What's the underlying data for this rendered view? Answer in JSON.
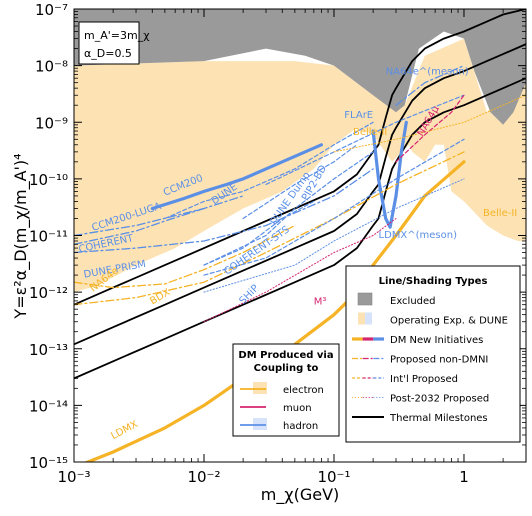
{
  "chart_data": {
    "type": "line",
    "xlabel": "m_χ(GeV)",
    "ylabel": "Y=ε²α_D(m_χ/m_A')⁴",
    "x_scale": "log",
    "y_scale": "log",
    "xlim": [
      0.001,
      3
    ],
    "ylim": [
      1e-15,
      1e-07
    ],
    "x_ticks": [
      {
        "value": 0.001,
        "label": "10⁻³"
      },
      {
        "value": 0.01,
        "label": "10⁻²"
      },
      {
        "value": 0.1,
        "label": "10⁻¹"
      },
      {
        "value": 1,
        "label": "1"
      }
    ],
    "y_ticks": [
      {
        "value": 1e-15,
        "label": "10⁻¹⁵"
      },
      {
        "value": 1e-14,
        "label": "10⁻¹⁴"
      },
      {
        "value": 1e-13,
        "label": "10⁻¹³"
      },
      {
        "value": 1e-12,
        "label": "10⁻¹²"
      },
      {
        "value": 1e-11,
        "label": "10⁻¹¹"
      },
      {
        "value": 1e-10,
        "label": "10⁻¹⁰"
      },
      {
        "value": 1e-09,
        "label": "10⁻⁹"
      },
      {
        "value": 1e-08,
        "label": "10⁻⁸"
      },
      {
        "value": 1e-07,
        "label": "10⁻⁷"
      }
    ],
    "parameters": [
      "m_A'=3m_χ",
      "α_D=0.5"
    ],
    "colors": {
      "excluded": "#9a9a9a",
      "operating": "#fde3b4",
      "electron": "#f5b325",
      "muon": "#d6246e",
      "hadron": "#5b8fe6",
      "thermal": "#000000"
    },
    "regions": [
      {
        "name": "Excluded",
        "points": [
          [
            0.001,
            1e-08
          ],
          [
            0.01,
            1.2e-08
          ],
          [
            0.03,
            2e-08
          ],
          [
            0.06,
            1.5e-08
          ],
          [
            0.1,
            1e-08
          ],
          [
            0.2,
            3e-09
          ],
          [
            0.3,
            1.5e-09
          ],
          [
            0.35,
            2e-09
          ],
          [
            0.45,
            2e-08
          ],
          [
            0.7,
            4e-08
          ],
          [
            1,
            3e-08
          ],
          [
            1.2,
            8e-09
          ],
          [
            1.6,
            1.5e-09
          ],
          [
            2,
            9e-10
          ],
          [
            2.4,
            1.5e-09
          ],
          [
            3,
            5e-09
          ],
          [
            3,
            1e-07
          ],
          [
            0.001,
            1e-07
          ]
        ]
      },
      {
        "name": "Operating Exp. & DUNE",
        "points": [
          [
            0.001,
            1e-12
          ],
          [
            0.0015,
            1.3e-12
          ],
          [
            0.003,
            3e-12
          ],
          [
            0.006,
            6e-12
          ],
          [
            0.01,
            1.2e-11
          ],
          [
            0.02,
            3e-11
          ],
          [
            0.04,
            6e-11
          ],
          [
            0.07,
            1.5e-10
          ],
          [
            0.1,
            4e-10
          ],
          [
            0.15,
            8e-10
          ],
          [
            0.2,
            6e-10
          ],
          [
            0.28,
            2e-10
          ],
          [
            0.33,
            3e-10
          ],
          [
            0.38,
            4e-10
          ],
          [
            0.4,
            3e-10
          ],
          [
            0.5,
            2e-10
          ],
          [
            0.6,
            4e-10
          ],
          [
            0.7,
            4e-10
          ],
          [
            0.8,
            6e-11
          ],
          [
            1,
            4e-11
          ],
          [
            1.5,
            1.5e-11
          ],
          [
            2,
            1e-11
          ],
          [
            2.6,
            8e-12
          ],
          [
            3,
            8e-12
          ],
          [
            3,
            1e-08
          ],
          [
            1.5,
            1.5e-09
          ],
          [
            1,
            3e-08
          ],
          [
            0.5,
            1.5e-08
          ],
          [
            0.35,
            2e-09
          ],
          [
            0.2,
            3e-09
          ],
          [
            0.1,
            1e-08
          ],
          [
            0.05,
            1.2e-08
          ],
          [
            0.01,
            1.2e-08
          ],
          [
            0.001,
            1e-08
          ]
        ]
      }
    ],
    "series": [
      {
        "name": "Thermal Milestones",
        "style": "thermal",
        "x": [
          0.001,
          0.002,
          0.005,
          0.01,
          0.02,
          0.05,
          0.1,
          0.15,
          0.2,
          0.22,
          0.25,
          0.28,
          0.3,
          0.4,
          0.5,
          0.7,
          1,
          1.5,
          2,
          3
        ],
        "y": [
          3e-14,
          6e-14,
          1.5e-13,
          3e-13,
          6e-13,
          1.5e-12,
          3e-12,
          6e-12,
          1.5e-11,
          2e-11,
          6e-11,
          1.5e-10,
          2e-10,
          6e-10,
          1e-09,
          1.5e-09,
          2e-09,
          3e-09,
          4e-09,
          6e-09
        ]
      },
      {
        "name": "Thermal Milestones",
        "style": "thermal",
        "x": [
          0.001,
          0.002,
          0.005,
          0.01,
          0.02,
          0.05,
          0.1,
          0.15,
          0.2,
          0.22,
          0.25,
          0.28,
          0.3,
          0.4,
          0.5,
          0.7,
          1,
          1.5,
          2,
          3
        ],
        "y": [
          1.2e-13,
          2.4e-13,
          6e-13,
          1.2e-12,
          2.4e-12,
          6e-12,
          1.2e-11,
          2.4e-11,
          6e-11,
          8e-11,
          2.4e-10,
          6e-10,
          8e-10,
          2.4e-09,
          4e-09,
          6e-09,
          8e-09,
          1.2e-08,
          1.6e-08,
          2.4e-08
        ]
      },
      {
        "name": "Thermal Milestones",
        "style": "thermal",
        "x": [
          0.001,
          0.002,
          0.005,
          0.01,
          0.02,
          0.05,
          0.1,
          0.15,
          0.2,
          0.22,
          0.25,
          0.28,
          0.3,
          0.4,
          0.5,
          0.7,
          1,
          1.5,
          2,
          3
        ],
        "y": [
          6e-13,
          1.2e-12,
          3e-12,
          6e-12,
          1.2e-11,
          3e-11,
          6e-11,
          1.2e-10,
          3e-10,
          4e-10,
          1.2e-09,
          3e-09,
          4e-09,
          1.2e-08,
          2e-08,
          3e-08,
          4e-08,
          6e-08,
          8e-08,
          1e-07
        ]
      },
      {
        "name": "LDMX",
        "style": "electron-dmni",
        "x": [
          0.001,
          0.002,
          0.005,
          0.01,
          0.02,
          0.05,
          0.1,
          0.15,
          0.2,
          0.3,
          0.5,
          1
        ],
        "y": [
          8e-16,
          1.5e-15,
          4e-15,
          1e-14,
          3e-14,
          1.2e-13,
          4e-13,
          1e-12,
          3e-12,
          1e-11,
          5e-11,
          2e-10
        ]
      },
      {
        "name": "LDMX^(meson)",
        "style": "hadron-dmni",
        "x": [
          0.2,
          0.22,
          0.25,
          0.27,
          0.3,
          0.33,
          0.36
        ],
        "y": [
          7e-10,
          1e-10,
          2e-11,
          1.4e-11,
          5e-11,
          3e-10,
          1e-09
        ]
      },
      {
        "name": "CCM200",
        "style": "hadron-dmni",
        "x": [
          0.004,
          0.007,
          0.01,
          0.015,
          0.02,
          0.04,
          0.08
        ],
        "y": [
          3e-11,
          4.5e-11,
          6e-11,
          8e-11,
          1e-10,
          2e-10,
          4e-10
        ]
      },
      {
        "name": "NA64e",
        "style": "electron-nondmni",
        "x": [
          0.001,
          0.002,
          0.005,
          0.01,
          0.02,
          0.05
        ],
        "y": [
          1.5e-12,
          1.2e-12,
          1.4e-12,
          2.5e-12,
          5e-12,
          1.5e-11
        ]
      },
      {
        "name": "BDX",
        "style": "electron-nondmni",
        "x": [
          0.001,
          0.003,
          0.01,
          0.03,
          0.1,
          0.3,
          1
        ],
        "y": [
          6e-13,
          8e-13,
          1.5e-12,
          5e-12,
          2e-11,
          8e-11,
          3e-10
        ]
      },
      {
        "name": "DUNE PRISM",
        "style": "hadron-nondmni",
        "x": [
          0.001,
          0.003,
          0.01,
          0.03,
          0.1,
          0.2
        ],
        "y": [
          5e-12,
          6e-12,
          8e-12,
          1.5e-11,
          5e-11,
          1.5e-10
        ]
      },
      {
        "name": "COHERENT",
        "style": "hadron-nondmni",
        "x": [
          0.001,
          0.003,
          0.005,
          0.01
        ],
        "y": [
          7e-12,
          1.2e-11,
          1.8e-11,
          3e-11
        ]
      },
      {
        "name": "CCM200-LUGA",
        "style": "hadron-nondmni",
        "x": [
          0.001,
          0.003,
          0.01,
          0.02
        ],
        "y": [
          1e-11,
          1.5e-11,
          3e-11,
          5e-11
        ]
      },
      {
        "name": "DUNE",
        "style": "hadron-intl",
        "x": [
          0.005,
          0.01,
          0.02,
          0.05,
          0.1,
          0.2
        ],
        "y": [
          2e-11,
          4e-11,
          6e-11,
          1.5e-10,
          4e-10,
          1e-09
        ]
      },
      {
        "name": "DUNE Dump",
        "style": "hadron-intl",
        "x": [
          0.01,
          0.03,
          0.05,
          0.1,
          0.2
        ],
        "y": [
          3e-12,
          1e-11,
          3e-11,
          1e-10,
          3e-10
        ]
      },
      {
        "name": "COHERENT-STS",
        "style": "hadron-intl",
        "x": [
          0.01,
          0.02,
          0.04,
          0.07
        ],
        "y": [
          3e-12,
          6e-12,
          2e-11,
          4e-11
        ]
      },
      {
        "name": "SHiP",
        "style": "hadron-intl",
        "x": [
          0.01,
          0.03,
          0.1,
          0.3,
          1
        ],
        "y": [
          2e-12,
          4e-12,
          2e-11,
          1e-10,
          5e-10
        ]
      },
      {
        "name": "PIP2-BD",
        "style": "hadron-intl",
        "x": [
          0.02,
          0.05,
          0.1,
          0.15
        ],
        "y": [
          2e-11,
          8e-11,
          2e-10,
          4e-10
        ]
      },
      {
        "name": "FLArE",
        "style": "hadron-intl",
        "x": [
          0.03,
          0.1,
          0.3,
          1
        ],
        "y": [
          8e-11,
          3e-10,
          1e-09,
          3e-09
        ]
      },
      {
        "name": "NA64μ",
        "style": "muon-intl",
        "x": [
          0.3,
          0.5,
          0.8,
          1
        ],
        "y": [
          2e-10,
          6e-10,
          1.5e-09,
          3e-09
        ]
      },
      {
        "name": "M³",
        "style": "muon-post",
        "x": [
          0.01,
          0.03,
          0.1,
          0.2,
          0.3
        ],
        "y": [
          3e-13,
          1e-12,
          5e-12,
          1e-11,
          2e-11
        ]
      },
      {
        "name": "NA64e^(meson)",
        "style": "hadron-nondmni",
        "x": [
          0.3,
          0.5,
          1
        ],
        "y": [
          2e-09,
          5e-09,
          1e-08
        ]
      },
      {
        "name": "Belle-II",
        "style": "electron-post",
        "x": [
          0.1,
          0.3,
          1,
          3
        ],
        "y": [
          3e-10,
          5e-10,
          1e-09,
          3e-09
        ]
      },
      {
        "name": "Post-2032",
        "style": "hadron-post",
        "x": [
          0.01,
          0.05,
          0.1,
          0.3,
          1
        ],
        "y": [
          1e-12,
          3e-12,
          8e-12,
          3e-11,
          1e-10
        ]
      }
    ],
    "labels": [
      {
        "text": "CCM200",
        "x": 0.005,
        "y": 5e-11,
        "color": "#5b8fe6",
        "angle": -22
      },
      {
        "text": "DUNE",
        "x": 0.012,
        "y": 3.5e-11,
        "color": "#5b8fe6",
        "angle": -35
      },
      {
        "text": "CCM200-LUGA",
        "x": 0.0014,
        "y": 1.2e-11,
        "color": "#5b8fe6",
        "angle": -18
      },
      {
        "text": "COHERENT",
        "x": 0.0011,
        "y": 5e-12,
        "color": "#5b8fe6",
        "angle": -12
      },
      {
        "text": "DUNE PRISM",
        "x": 0.0012,
        "y": 1.8e-12,
        "color": "#5b8fe6",
        "angle": -10
      },
      {
        "text": "NA64e",
        "x": 0.0014,
        "y": 1e-12,
        "color": "#f5b325",
        "angle": -38
      },
      {
        "text": "BDX",
        "x": 0.004,
        "y": 6e-13,
        "color": "#f5b325",
        "angle": -30
      },
      {
        "text": "DUNE Dump",
        "x": 0.035,
        "y": 1.5e-11,
        "color": "#5b8fe6",
        "angle": -55
      },
      {
        "text": "COHERENT-STS",
        "x": 0.015,
        "y": 2e-12,
        "color": "#5b8fe6",
        "angle": -35
      },
      {
        "text": "SHiP",
        "x": 0.02,
        "y": 6e-13,
        "color": "#5b8fe6",
        "angle": -45
      },
      {
        "text": "PIP2-BD",
        "x": 0.062,
        "y": 4e-11,
        "color": "#5b8fe6",
        "angle": -60
      },
      {
        "text": "FLArE",
        "x": 0.12,
        "y": 1.2e-09,
        "color": "#5b8fe6",
        "angle": 0
      },
      {
        "text": "Belle-II",
        "x": 0.14,
        "y": 6e-10,
        "color": "#f5b325",
        "angle": 0
      },
      {
        "text": "Belle-II",
        "x": 1.4,
        "y": 2.2e-11,
        "color": "#f5b325",
        "angle": 0
      },
      {
        "text": "NA64e^(meson)",
        "x": 0.25,
        "y": 7e-09,
        "color": "#5b8fe6",
        "angle": 0
      },
      {
        "text": "NA64μ",
        "x": 0.48,
        "y": 5.5e-10,
        "color": "#d6246e",
        "angle": -60
      },
      {
        "text": "LDMX^(meson)",
        "x": 0.22,
        "y": 9e-12,
        "color": "#5b8fe6",
        "angle": 0
      },
      {
        "text": "M³",
        "x": 0.07,
        "y": 6e-13,
        "color": "#d6246e",
        "angle": 0
      },
      {
        "text": "LDMX",
        "x": 0.002,
        "y": 2.5e-15,
        "color": "#f5b325",
        "angle": -28
      }
    ],
    "legend_types": {
      "title": "Line/Shading Types",
      "placement": "bottom-right",
      "items": [
        {
          "label": "Excluded",
          "kind": "excluded"
        },
        {
          "label": "Operating Exp. & DUNE",
          "kind": "operating"
        },
        {
          "label": "DM New Initiatives",
          "kind": "dmni"
        },
        {
          "label": "Proposed non-DMNI",
          "kind": "nondmni"
        },
        {
          "label": "Int'l Proposed",
          "kind": "intl"
        },
        {
          "label": "Post-2032 Proposed",
          "kind": "post"
        },
        {
          "label": "Thermal Milestones",
          "kind": "thermal"
        }
      ]
    },
    "legend_coupling": {
      "title_line1": "DM Produced via",
      "title_line2": "Coupling to",
      "placement": "bottom-center",
      "items": [
        {
          "label": "electron",
          "color": "#f5b325",
          "swatch": "#fde3b4"
        },
        {
          "label": "muon",
          "color": "#d6246e",
          "swatch": ""
        },
        {
          "label": "hadron",
          "color": "#5b8fe6",
          "swatch": "#d6e3fb"
        }
      ]
    }
  }
}
